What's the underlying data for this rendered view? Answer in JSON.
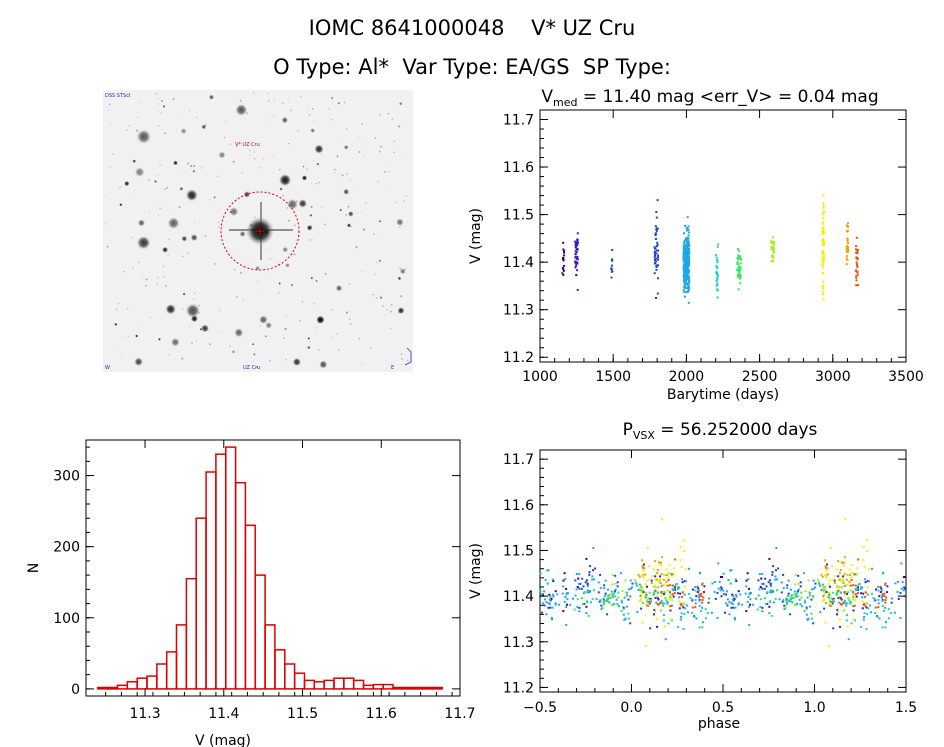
{
  "header": {
    "title_line1": "IOMC 8641000048    V* UZ Cru",
    "title_line2": "O Type: Al*  Var Type: EA/GS  SP Type:"
  },
  "sky_image": {
    "top_left_label": "DSS STScI",
    "marker_label": "V* UZ Cru",
    "bottom_left_label": "W",
    "bottom_center_label": "UZ Cru",
    "bottom_right_label": "E"
  },
  "colors": {
    "histogram": "#dd0000",
    "axes": "#000000",
    "palette": [
      "#3a0070",
      "#3a1cb0",
      "#2040d0",
      "#1e80e8",
      "#1ea8e8",
      "#20d0c8",
      "#30e860",
      "#a0ee20",
      "#f0f000",
      "#f0a000",
      "#f05000",
      "#d02000"
    ]
  },
  "chart_data": [
    {
      "type": "scatter",
      "id": "light_curve",
      "title": "V",
      "title_sub": "med",
      "title_rest": " = 11.40 mag <err_V> = 0.04 mag",
      "xlabel": "Barytime (days)",
      "ylabel": "V (mag)",
      "xlim": [
        1000,
        3500
      ],
      "ylim": [
        11.72,
        11.19
      ],
      "x_ticks": [
        1000,
        1500,
        2000,
        2500,
        3000,
        3500
      ],
      "y_ticks": [
        11.2,
        11.3,
        11.4,
        11.5,
        11.6,
        11.7
      ],
      "y_tick_labels": [
        "11.2",
        "11.3",
        "11.4",
        "11.5",
        "11.6",
        "11.7"
      ],
      "groups": [
        {
          "x": 1160,
          "width": 15,
          "mean": 11.41,
          "spread": 0.05,
          "n": 16,
          "color": 0
        },
        {
          "x": 1250,
          "width": 20,
          "mean": 11.41,
          "spread": 0.04,
          "n": 40,
          "color": 1
        },
        {
          "x": 1490,
          "width": 8,
          "mean": 11.39,
          "spread": 0.04,
          "n": 12,
          "color": 2
        },
        {
          "x": 1795,
          "width": 25,
          "mean": 11.42,
          "spread": 0.06,
          "n": 45,
          "color": 2
        },
        {
          "x": 2000,
          "width": 40,
          "mean": 11.4,
          "spread": 0.05,
          "n": 340,
          "color": 4
        },
        {
          "x": 2210,
          "width": 15,
          "mean": 11.38,
          "spread": 0.04,
          "n": 30,
          "color": 5
        },
        {
          "x": 2360,
          "width": 30,
          "mean": 11.39,
          "spread": 0.03,
          "n": 40,
          "color": 6
        },
        {
          "x": 2590,
          "width": 20,
          "mean": 11.42,
          "spread": 0.03,
          "n": 30,
          "color": 7
        },
        {
          "x": 2935,
          "width": 15,
          "mean": 11.42,
          "spread": 0.09,
          "n": 60,
          "color": 8
        },
        {
          "x": 3100,
          "width": 10,
          "mean": 11.44,
          "spread": 0.05,
          "n": 25,
          "color": 9
        },
        {
          "x": 3165,
          "width": 15,
          "mean": 11.4,
          "spread": 0.04,
          "n": 28,
          "color": 10
        }
      ]
    },
    {
      "type": "bar",
      "id": "histogram",
      "xlabel": "V (mag)",
      "ylabel": "N",
      "xlim": [
        11.225,
        11.7
      ],
      "ylim": [
        -10,
        350
      ],
      "x_ticks": [
        11.3,
        11.4,
        11.5,
        11.6,
        11.7
      ],
      "x_tick_labels": [
        "11.3",
        "11.4",
        "11.5",
        "11.6",
        "11.7"
      ],
      "y_ticks": [
        0,
        100,
        200,
        300
      ],
      "bin_start": 11.24,
      "bin_width": 0.0125,
      "values": [
        2,
        2,
        5,
        10,
        15,
        18,
        35,
        52,
        90,
        155,
        240,
        305,
        330,
        340,
        290,
        230,
        160,
        90,
        55,
        35,
        22,
        12,
        10,
        12,
        15,
        15,
        12,
        5,
        6,
        6,
        2,
        2,
        2,
        2,
        2
      ]
    },
    {
      "type": "scatter",
      "id": "phased",
      "title": "P",
      "title_sub": "VSX",
      "title_rest": " = 56.252000 days",
      "xlabel": "phase",
      "ylabel": "V (mag)",
      "xlim": [
        -0.5,
        1.5
      ],
      "ylim": [
        11.72,
        11.19
      ],
      "x_ticks": [
        -0.5,
        0.0,
        0.5,
        1.0,
        1.5
      ],
      "x_tick_labels": [
        "−0.5",
        "0.0",
        "0.5",
        "1.0",
        "1.5"
      ],
      "y_ticks": [
        11.2,
        11.3,
        11.4,
        11.5,
        11.6,
        11.7
      ],
      "y_tick_labels": [
        "11.2",
        "11.3",
        "11.4",
        "11.5",
        "11.6",
        "11.7"
      ],
      "period_days": 56.252
    }
  ]
}
